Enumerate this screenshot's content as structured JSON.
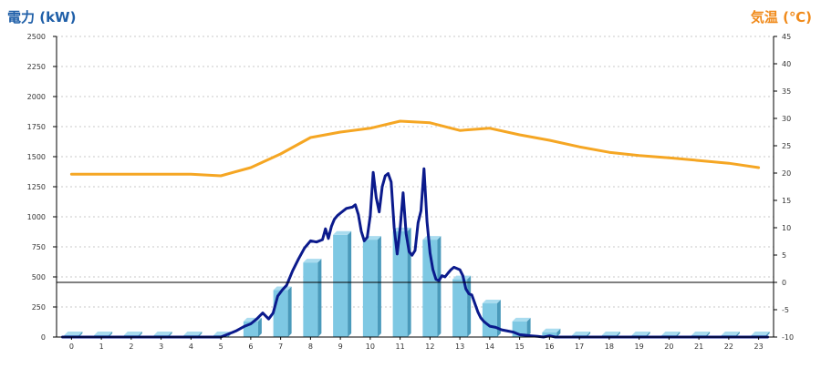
{
  "colors": {
    "power_title": "#1f5fa8",
    "temp_title": "#f08a1a",
    "bar_face": "#7ec8e3",
    "bar_side": "#4a9abb",
    "bar_top": "#a9dcef",
    "power_line": "#0b1a8c",
    "temp_line": "#f5a623",
    "grid": "#c8c8c8",
    "axis": "#000000",
    "tick_text": "#333333"
  },
  "chart_data": {
    "type": "bar",
    "title": "",
    "ylabel": "電力 (kW)",
    "y2label": "気温 (℃)",
    "xlabel": "",
    "grid": true,
    "categories": [
      "0",
      "1",
      "2",
      "3",
      "4",
      "5",
      "6",
      "7",
      "8",
      "9",
      "10",
      "11",
      "12",
      "13",
      "14",
      "15",
      "16",
      "17",
      "18",
      "19",
      "20",
      "21",
      "22",
      "23"
    ],
    "ylim": [
      0,
      2500
    ],
    "y_ticks": [
      0,
      250,
      500,
      750,
      1000,
      1250,
      1500,
      1750,
      2000,
      2250,
      2500
    ],
    "y2lim": [
      -10,
      45
    ],
    "y2_ticks": [
      -10,
      -5,
      0,
      5,
      10,
      15,
      20,
      25,
      30,
      35,
      40,
      45
    ],
    "series": [
      {
        "kind": "bar",
        "axis": "left",
        "values": [
          15,
          15,
          15,
          15,
          15,
          15,
          130,
          390,
          620,
          850,
          810,
          880,
          810,
          480,
          280,
          130,
          40,
          15,
          15,
          15,
          15,
          15,
          15,
          15
        ]
      },
      {
        "kind": "line",
        "axis": "left",
        "x": [
          -0.3,
          1,
          2,
          3,
          4,
          5,
          5.5,
          5.8,
          6,
          6.2,
          6.4,
          6.6,
          6.75,
          6.9,
          7.05,
          7.2,
          7.4,
          7.6,
          7.8,
          8,
          8.2,
          8.4,
          8.5,
          8.6,
          8.7,
          8.8,
          8.9,
          9,
          9.2,
          9.4,
          9.5,
          9.6,
          9.7,
          9.8,
          9.9,
          10,
          10.1,
          10.2,
          10.3,
          10.4,
          10.5,
          10.6,
          10.7,
          10.8,
          10.9,
          11,
          11.1,
          11.2,
          11.3,
          11.4,
          11.5,
          11.6,
          11.7,
          11.8,
          11.9,
          12,
          12.1,
          12.2,
          12.3,
          12.4,
          12.5,
          12.6,
          12.7,
          12.8,
          12.9,
          13,
          13.1,
          13.2,
          13.3,
          13.4,
          13.5,
          13.6,
          13.7,
          13.8,
          13.9,
          14,
          14.2,
          14.4,
          14.6,
          14.8,
          15,
          15.2,
          15.4,
          15.6,
          15.8,
          16,
          16.2,
          16.3,
          16.5,
          17,
          18,
          19,
          20,
          21,
          22,
          23.3
        ],
        "values": [
          0,
          0,
          0,
          0,
          0,
          0,
          50,
          90,
          110,
          150,
          200,
          150,
          200,
          340,
          390,
          430,
          550,
          650,
          740,
          800,
          790,
          810,
          900,
          820,
          920,
          980,
          1010,
          1030,
          1070,
          1080,
          1100,
          1020,
          880,
          800,
          830,
          1010,
          1370,
          1160,
          1040,
          1250,
          1340,
          1360,
          1290,
          910,
          690,
          900,
          1200,
          860,
          710,
          680,
          720,
          950,
          1050,
          1400,
          960,
          700,
          560,
          480,
          470,
          510,
          500,
          530,
          560,
          580,
          570,
          560,
          510,
          400,
          360,
          350,
          280,
          210,
          160,
          130,
          110,
          90,
          80,
          60,
          50,
          40,
          20,
          15,
          10,
          5,
          0,
          10,
          0,
          0,
          0,
          0,
          0,
          0,
          0,
          0,
          0,
          0
        ]
      },
      {
        "kind": "line",
        "axis": "right",
        "x": [
          0,
          1,
          2,
          3,
          4,
          5,
          6,
          7,
          8,
          9,
          10,
          11,
          12,
          13,
          14,
          15,
          16,
          17,
          18,
          19,
          20,
          21,
          22,
          23
        ],
        "values": [
          19.8,
          19.8,
          19.8,
          19.8,
          19.8,
          19.5,
          21.0,
          23.5,
          26.5,
          27.5,
          28.2,
          29.5,
          29.2,
          27.8,
          28.2,
          27.0,
          26.0,
          24.8,
          23.8,
          23.2,
          22.8,
          22.3,
          21.8,
          21.0
        ]
      }
    ]
  }
}
